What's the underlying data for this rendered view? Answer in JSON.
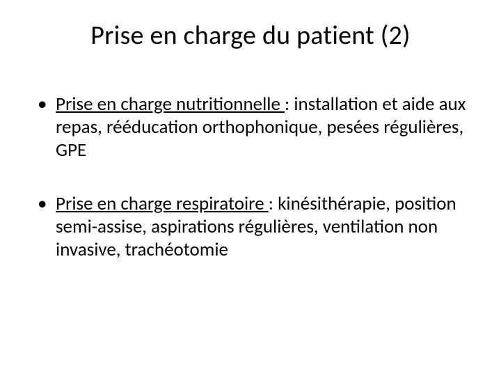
{
  "slide": {
    "title": "Prise en charge du patient (2)",
    "title_fontsize": 38,
    "title_color": "#000000",
    "background_color": "#ffffff",
    "bullets": [
      {
        "lead": "Prise en charge nutritionnelle ",
        "rest": ": installation et aide aux repas, rééducation orthophonique, pesées régulières, GPE"
      },
      {
        "lead": "Prise en charge respiratoire ",
        "rest": ": kinésithérapie, position semi-assise, aspirations régulières, ventilation non invasive, trachéotomie"
      }
    ],
    "body_fontsize": 27,
    "body_color": "#000000",
    "bullet_glyph": "•"
  }
}
